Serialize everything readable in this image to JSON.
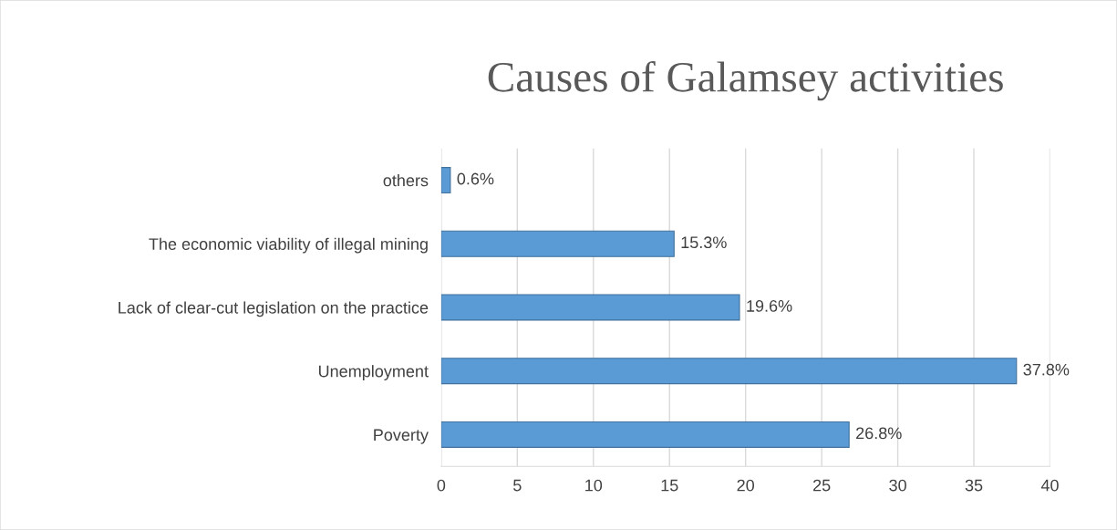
{
  "chart_data": {
    "type": "bar",
    "orientation": "horizontal",
    "title": "Causes of Galamsey activities",
    "categories": [
      "others",
      "The economic viability of illegal mining",
      "Lack of clear-cut legislation on the practice",
      "Unemployment",
      "Poverty"
    ],
    "values": [
      0.6,
      15.3,
      19.6,
      37.8,
      26.8
    ],
    "value_labels": [
      "0.6%",
      "15.3%",
      "19.6%",
      "37.8%",
      "26.8%"
    ],
    "color": "#5b9bd5",
    "xlim": [
      0,
      40
    ],
    "xticks": [
      0,
      5,
      10,
      15,
      20,
      25,
      30,
      35,
      40
    ],
    "grid": "x"
  }
}
